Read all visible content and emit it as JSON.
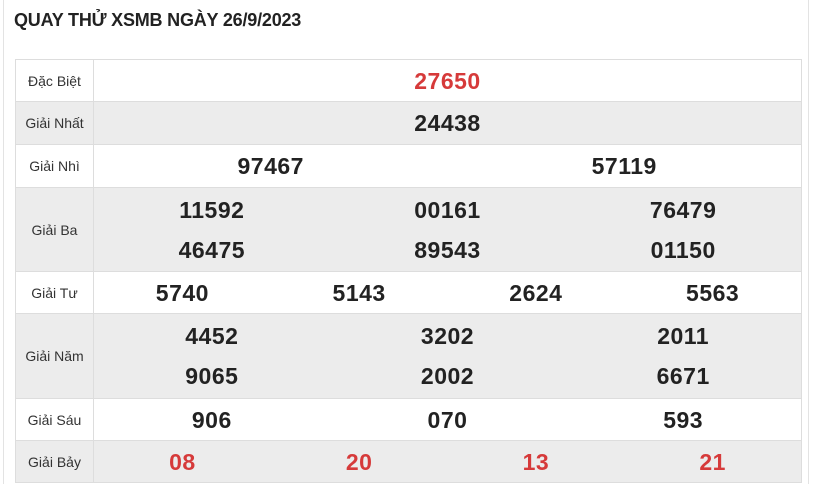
{
  "title": "QUAY THỬ XSMB NGÀY 26/9/2023",
  "colors": {
    "highlight": "#d63a3a",
    "text": "#222222",
    "alt_row": "#ececec"
  },
  "prizes": [
    {
      "label": "Đặc Biệt",
      "numbers": [
        "27650"
      ]
    },
    {
      "label": "Giải Nhất",
      "numbers": [
        "24438"
      ]
    },
    {
      "label": "Giải Nhì",
      "numbers": [
        "97467",
        "57119"
      ]
    },
    {
      "label": "Giải Ba",
      "numbers": [
        "11592",
        "00161",
        "76479",
        "46475",
        "89543",
        "01150"
      ]
    },
    {
      "label": "Giải Tư",
      "numbers": [
        "5740",
        "5143",
        "2624",
        "5563"
      ]
    },
    {
      "label": "Giải Năm",
      "numbers": [
        "4452",
        "3202",
        "2011",
        "9065",
        "2002",
        "6671"
      ]
    },
    {
      "label": "Giải Sáu",
      "numbers": [
        "906",
        "070",
        "593"
      ]
    },
    {
      "label": "Giải Bảy",
      "numbers": [
        "08",
        "20",
        "13",
        "21"
      ]
    }
  ]
}
